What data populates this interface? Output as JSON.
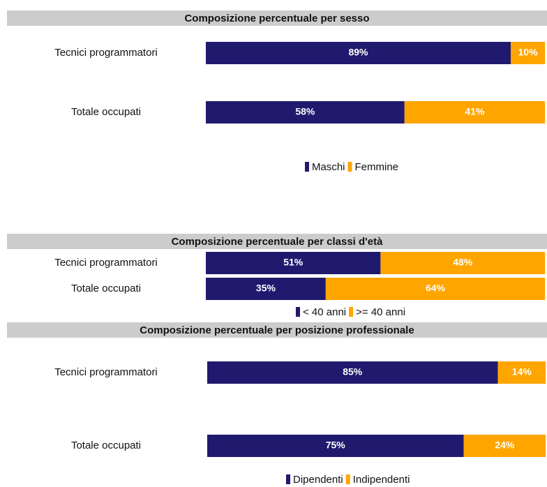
{
  "chart_data": [
    {
      "type": "bar",
      "title": "Composizione percentuale per sesso",
      "categories": [
        "Tecnici programmatori",
        "Totale occupati"
      ],
      "xlim": [
        0,
        100
      ],
      "series": [
        {
          "name": "Maschi",
          "color": "#1f1a6e",
          "values": [
            89,
            58
          ],
          "value_labels": [
            "89%",
            "58%"
          ]
        },
        {
          "name": "Femmine",
          "color": "#ffa500",
          "values": [
            10,
            41
          ],
          "value_labels": [
            "10%",
            "41%"
          ]
        }
      ]
    },
    {
      "type": "bar",
      "title": "Composizione percentuale per classi d'età",
      "categories": [
        "Tecnici programmatori",
        "Totale occupati"
      ],
      "xlim": [
        0,
        100
      ],
      "series": [
        {
          "name": "< 40 anni",
          "color": "#1f1a6e",
          "values": [
            51,
            35
          ],
          "value_labels": [
            "51%",
            "35%"
          ]
        },
        {
          "name": ">= 40 anni",
          "color": "#ffa500",
          "values": [
            48,
            64
          ],
          "value_labels": [
            "48%",
            "64%"
          ]
        }
      ]
    },
    {
      "type": "bar",
      "title": "Composizione percentuale per posizione professionale",
      "categories": [
        "Tecnici programmatori",
        "Totale occupati"
      ],
      "xlim": [
        0,
        100
      ],
      "series": [
        {
          "name": "Dipendenti",
          "color": "#1f1a6e",
          "values": [
            85,
            75
          ],
          "value_labels": [
            "85%",
            "75%"
          ]
        },
        {
          "name": "Indipendenti",
          "color": "#ffa500",
          "values": [
            14,
            24
          ],
          "value_labels": [
            "14%",
            "24%"
          ]
        }
      ]
    }
  ]
}
